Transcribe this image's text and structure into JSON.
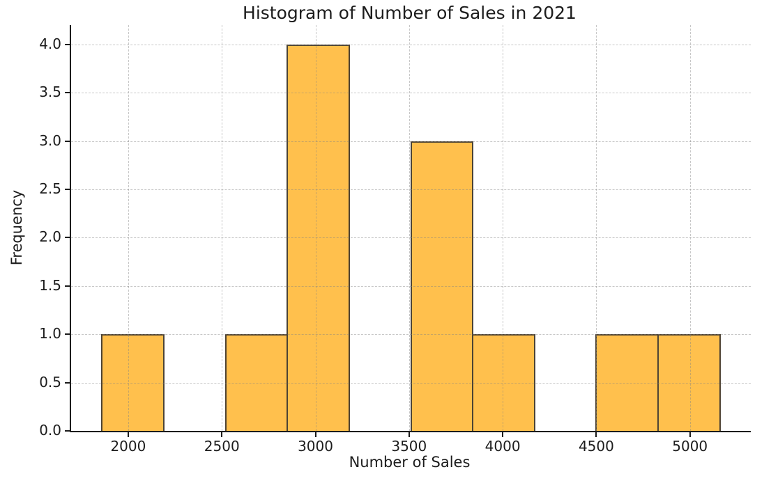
{
  "figure": {
    "background_color": "#ffffff",
    "text_color": "#1c1c1c"
  },
  "chart_data": {
    "type": "bar",
    "subtype": "histogram",
    "title": "Histogram of Number of Sales in 2021",
    "xlabel": "Number of Sales",
    "ylabel": "Frequency",
    "bin_edges": [
      1860,
      2190,
      2520,
      2850,
      3180,
      3510,
      3840,
      4170,
      4500,
      4830,
      5160
    ],
    "frequencies": [
      1,
      0,
      1,
      4,
      0,
      3,
      1,
      0,
      1,
      1
    ],
    "xticks": [
      2000,
      2500,
      3000,
      3500,
      4000,
      4500,
      5000
    ],
    "yticks": [
      0.0,
      0.5,
      1.0,
      1.5,
      2.0,
      2.5,
      3.0,
      3.5,
      4.0
    ],
    "xlim": [
      1695,
      5325
    ],
    "ylim": [
      0,
      4.2
    ],
    "grid": true,
    "grid_line_style": "dashed",
    "grid_position": "above-bars",
    "legend": "none",
    "bar_fill_color": "#ffc04d",
    "bar_edge_color": "#4d4334",
    "grid_color": "#d2d2d2",
    "axis_color": "#1c1c1c"
  }
}
